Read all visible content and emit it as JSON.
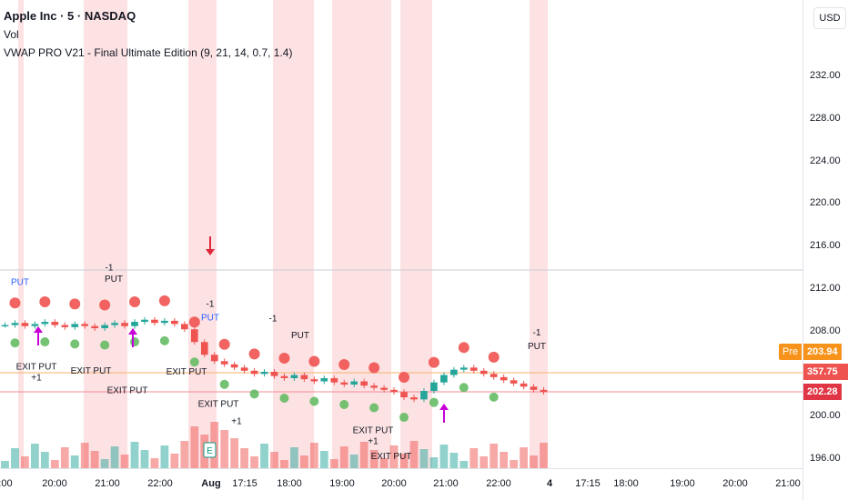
{
  "legend": {
    "title": "Apple Inc · 5 · NASDAQ",
    "vol": "Vol",
    "indicator": "VWAP PRO V21 - Final Ultimate Edition (9, 21, 14, 0.7, 1.4)"
  },
  "currency": "USD",
  "price_tags": {
    "pre_label": "Pre",
    "pre_price": "203.94",
    "volume": "357.75 K",
    "last": "202.28"
  },
  "colors": {
    "up": "#26a69a",
    "down": "#ef5350",
    "band": "#fde2e4",
    "put": "#e0263a",
    "exit": "#c800d8",
    "pre": "#f7931a"
  },
  "chart_data": {
    "type": "candlestick",
    "y_ticks": [
      "232.00",
      "228.00",
      "224.00",
      "220.00",
      "216.00",
      "212.00",
      "208.00",
      "200.00",
      "196.00"
    ],
    "ylim": [
      195,
      236
    ],
    "x_ticks": [
      ":00",
      "20:00",
      "21:00",
      "22:00",
      "Aug",
      "17:15",
      "18:00",
      "19:00",
      "20:00",
      "21:00",
      "22:00",
      "4",
      "17:15",
      "18:00",
      "19:00",
      "20:00",
      "21:00"
    ],
    "closes": [
      208.6,
      208.8,
      208.5,
      208.7,
      208.9,
      208.6,
      208.4,
      208.7,
      208.5,
      208.3,
      208.6,
      208.8,
      208.5,
      208.9,
      209.1,
      208.8,
      209.0,
      208.7,
      208.2,
      207.0,
      205.8,
      205.2,
      204.9,
      204.6,
      204.3,
      204.0,
      204.2,
      203.8,
      203.6,
      203.9,
      203.5,
      203.3,
      203.6,
      203.2,
      203.0,
      203.3,
      202.9,
      202.7,
      202.5,
      202.3,
      201.8,
      201.6,
      202.4,
      203.2,
      203.9,
      204.4,
      204.6,
      204.3,
      204.0,
      203.7,
      203.4,
      203.1,
      202.8,
      202.5,
      202.3
    ],
    "annotations": [
      {
        "text": "PUT"
      },
      {
        "text": "EXIT PUT"
      },
      {
        "text": "+1"
      },
      {
        "text": "-1"
      },
      {
        "text": "PUT"
      },
      {
        "text": "EXIT PUT"
      },
      {
        "text": "-1"
      },
      {
        "text": "PUT"
      },
      {
        "text": "EXIT PUT"
      },
      {
        "text": "EXIT PUT"
      },
      {
        "text": "EXIT PUT"
      },
      {
        "text": "+1"
      },
      {
        "text": "-1"
      },
      {
        "text": "PUT"
      },
      {
        "text": "EXIT PUT"
      },
      {
        "text": "+1"
      },
      {
        "text": "EXIT PUT"
      },
      {
        "text": "-1"
      },
      {
        "text": "PUT"
      }
    ],
    "earnings_marker": "E"
  }
}
